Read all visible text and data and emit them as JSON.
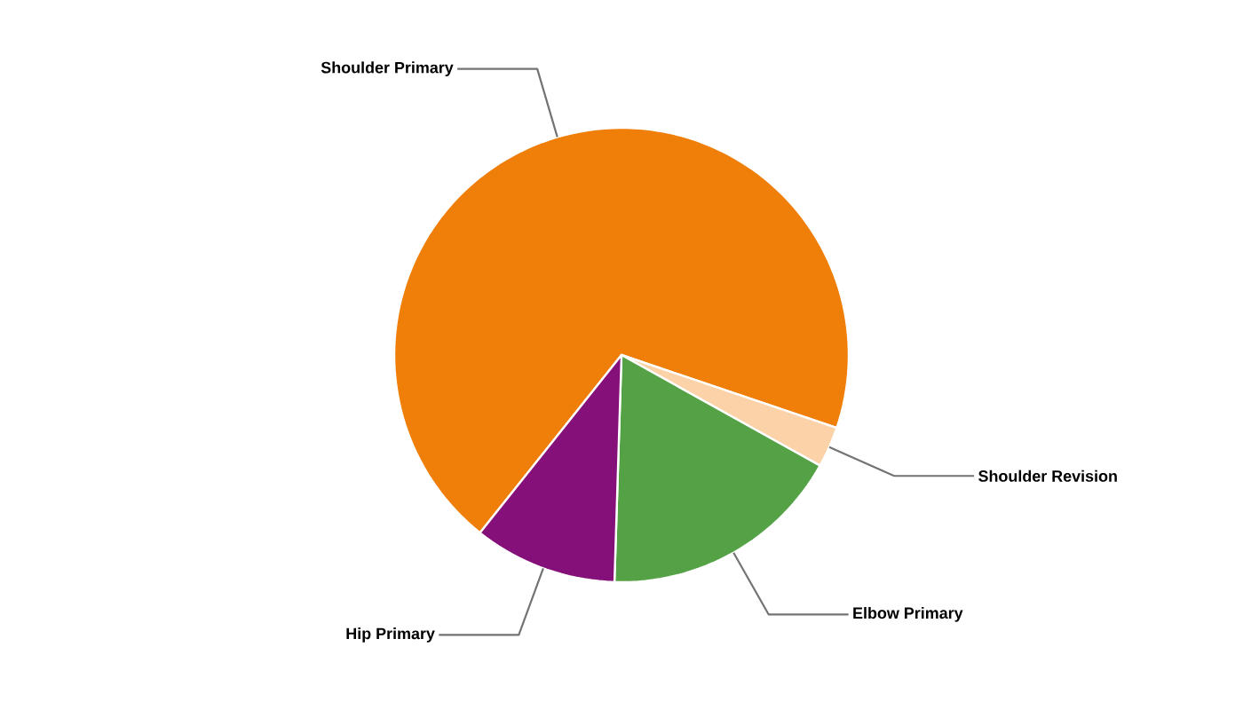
{
  "chart_data": {
    "type": "pie",
    "categories": [
      "Shoulder Primary",
      "Shoulder Revision",
      "Elbow Primary",
      "Hip Primary"
    ],
    "values": [
      69.5,
      2.9,
      17.4,
      10.2
    ],
    "colors": [
      "#f07f09",
      "#fcd3a8",
      "#54a245",
      "#861079"
    ]
  }
}
